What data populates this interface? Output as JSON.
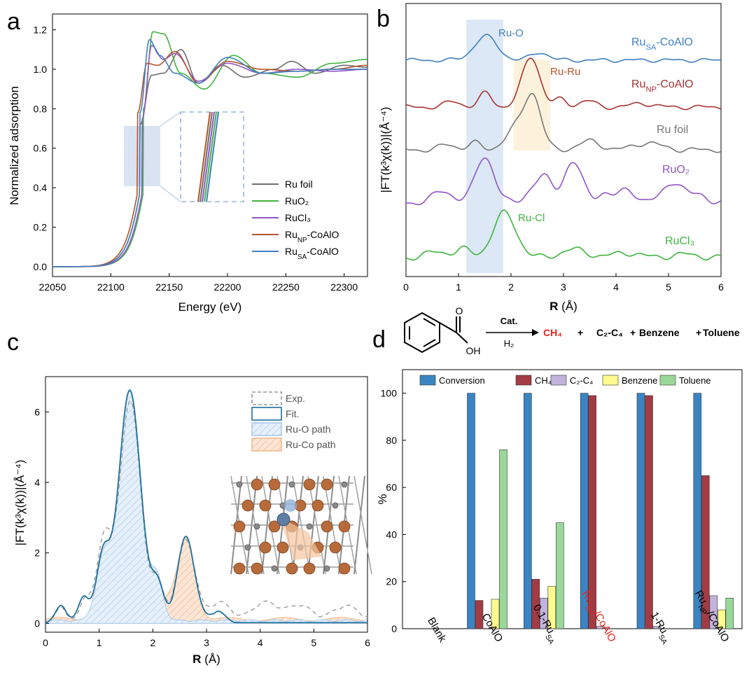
{
  "figure": {
    "panel_labels": [
      "a",
      "b",
      "c",
      "d"
    ]
  },
  "chart_data": [
    {
      "panel": "a",
      "type": "line",
      "xlabel": "Energy (eV)",
      "ylabel": "Normalized adsorption",
      "xlim": [
        22050,
        22320
      ],
      "ylim": [
        -0.05,
        1.28
      ],
      "xticks": [
        "22050",
        "22100",
        "22150",
        "22200",
        "22250",
        "22300"
      ],
      "yticks": [
        "0.0",
        "0.2",
        "0.4",
        "0.6",
        "0.8",
        "1.0",
        "1.2"
      ],
      "legend": {
        "position": "bottom-right",
        "entries": [
          {
            "label": "Ru foil",
            "color": "#6d6d6d"
          },
          {
            "label": "RuO₂",
            "color": "#3fb43f"
          },
          {
            "label": "RuCl₃",
            "color": "#8f55c8"
          },
          {
            "label": "Ru_NP-CoAlO",
            "main": "Ru",
            "sub": "NP",
            "rest": "-CoAlO",
            "color": "#b5542a"
          },
          {
            "label": "Ru_SA-CoAlO",
            "main": "Ru",
            "sub": "SA",
            "rest": "-CoAlO",
            "color": "#3f7fbf"
          }
        ]
      },
      "series": [
        {
          "name": "Ru foil",
          "color": "#6d6d6d",
          "edge": 22127,
          "width": 6.5,
          "x": [
            22125,
            22135,
            22145,
            22160,
            22175,
            22195,
            22215,
            22240,
            22255,
            22275,
            22300,
            22320
          ],
          "y": [
            0.72,
            0.97,
            0.98,
            1.1,
            0.93,
            1.02,
            0.96,
            1.0,
            1.04,
            0.98,
            1.02,
            1.01
          ]
        },
        {
          "name": "RuO2",
          "color": "#3fb43f",
          "edge": 22130,
          "width": 6.5,
          "x": [
            22128,
            22136,
            22145,
            22160,
            22180,
            22205,
            22230,
            22260,
            22290,
            22320
          ],
          "y": [
            0.8,
            1.19,
            1.18,
            0.98,
            0.9,
            1.07,
            0.98,
            0.96,
            1.03,
            1.05
          ]
        },
        {
          "name": "RuCl3",
          "color": "#8f55c8",
          "edge": 22129,
          "width": 6.5,
          "x": [
            22127,
            22135,
            22145,
            22155,
            22175,
            22200,
            22230,
            22260,
            22290,
            22320
          ],
          "y": [
            0.75,
            1.12,
            1.05,
            1.08,
            0.94,
            1.03,
            0.98,
            1.0,
            0.99,
            1.0
          ]
        },
        {
          "name": "RuNP-CoAlO",
          "color": "#b5542a",
          "edge": 22125,
          "width": 6.5,
          "x": [
            22123,
            22131,
            22140,
            22155,
            22175,
            22200,
            22230,
            22260,
            22290,
            22320
          ],
          "y": [
            0.78,
            1.03,
            1.02,
            1.09,
            0.93,
            1.04,
            1.0,
            0.99,
            1.0,
            1.02
          ]
        },
        {
          "name": "RuSA-CoAlO",
          "color": "#3f7fbf",
          "edge": 22127,
          "width": 6.5,
          "x": [
            22125,
            22133,
            22142,
            22155,
            22175,
            22200,
            22230,
            22260,
            22290,
            22320
          ],
          "y": [
            0.78,
            1.15,
            1.07,
            0.98,
            0.93,
            1.06,
            0.98,
            0.99,
            1.0,
            1.0
          ]
        }
      ]
    },
    {
      "panel": "b",
      "type": "line",
      "xlabel": "R (Å)",
      "xlabel_bold": "R",
      "xlabel_rest": " (Å)",
      "ylabel": "|FT(k³χ(k))|(Å⁻⁴)",
      "xlim": [
        0,
        6
      ],
      "xticks": [
        "0",
        "1",
        "2",
        "3",
        "4",
        "5",
        "6"
      ],
      "highlight_bands": [
        {
          "name": "Ru-O",
          "x0": 1.15,
          "x1": 1.85,
          "color": "#dce8f6"
        },
        {
          "name": "Ru-Ru",
          "x0": 2.05,
          "x1": 2.75,
          "color": "#fcf2dc"
        }
      ],
      "annotations": [
        {
          "text": "Ru-O",
          "color": "#3f7fbf"
        },
        {
          "text": "Ru-Ru",
          "color": "#b5542a"
        },
        {
          "text": "Ru-Cl",
          "color": "#3fb43f"
        }
      ],
      "series": [
        {
          "name": "RuSA-CoAlO",
          "label_main": "Ru",
          "label_sub": "SA",
          "label_rest": "-CoAlO",
          "color": "#3f7fbf",
          "offset": 4,
          "peaks": [
            [
              1.52,
              0.9,
              0.22
            ],
            [
              2.55,
              0.3,
              0.16
            ]
          ]
        },
        {
          "name": "RuNP-CoAlO",
          "label_main": "Ru",
          "label_sub": "NP",
          "label_rest": "-CoAlO",
          "color": "#a83232",
          "offset": 3,
          "peaks": [
            [
              0.9,
              0.18,
              0.15
            ],
            [
              1.52,
              0.45,
              0.12
            ],
            [
              2.38,
              1.6,
              0.17
            ],
            [
              2.95,
              0.25,
              0.12
            ],
            [
              3.45,
              0.2,
              0.15
            ],
            [
              4.5,
              0.12,
              0.2
            ]
          ]
        },
        {
          "name": "Ru foil",
          "label_main": "Ru foil",
          "label_sub": "",
          "label_rest": "",
          "color": "#777777",
          "offset": 2,
          "peaks": [
            [
              0.8,
              0.15,
              0.15
            ],
            [
              1.3,
              0.2,
              0.12
            ],
            [
              2.1,
              0.6,
              0.2
            ],
            [
              2.42,
              1.45,
              0.16
            ],
            [
              3.5,
              0.25,
              0.2
            ],
            [
              4.6,
              0.2,
              0.25
            ]
          ]
        },
        {
          "name": "RuO2",
          "label_main": "RuO₂",
          "label_sub": "",
          "label_rest": "",
          "color": "#8f55c8",
          "offset": 1,
          "peaks": [
            [
              0.7,
              0.3,
              0.2
            ],
            [
              1.5,
              1.2,
              0.18
            ],
            [
              2.4,
              0.3,
              0.15
            ],
            [
              2.65,
              0.6,
              0.14
            ],
            [
              3.18,
              1.05,
              0.18
            ],
            [
              3.75,
              0.25,
              0.12
            ],
            [
              4.2,
              0.35,
              0.18
            ],
            [
              5.1,
              0.55,
              0.2
            ],
            [
              5.6,
              0.2,
              0.15
            ]
          ]
        },
        {
          "name": "RuCl3",
          "label_main": "RuCl₃",
          "label_sub": "",
          "label_rest": "",
          "color": "#3fb43f",
          "offset": 0,
          "peaks": [
            [
              0.6,
              0.15,
              0.2
            ],
            [
              1.1,
              0.2,
              0.15
            ],
            [
              1.88,
              1.1,
              0.22
            ],
            [
              3.2,
              0.2,
              0.25
            ],
            [
              4.2,
              0.12,
              0.25
            ],
            [
              5.3,
              0.08,
              0.25
            ]
          ]
        }
      ]
    },
    {
      "panel": "c",
      "type": "line",
      "xlabel": "R (Å)",
      "xlabel_bold": "R",
      "xlabel_rest": " (Å)",
      "ylabel": "|FT(k³χ(k))|(Å⁻⁴)",
      "xlim": [
        0,
        6
      ],
      "ylim": [
        -0.25,
        7
      ],
      "xticks": [
        "0",
        "1",
        "2",
        "3",
        "4",
        "5",
        "6"
      ],
      "yticks": [
        "0",
        "2",
        "4",
        "6"
      ],
      "legend": {
        "position": "top-right",
        "entries": [
          {
            "label": "Exp.",
            "style": "dashed",
            "color": "#9a9a9a"
          },
          {
            "label": "Fit.",
            "style": "solid",
            "color": "#1f6f9a"
          },
          {
            "label": "Ru-O path",
            "style": "hatch-blue",
            "color": "#9ac3e8"
          },
          {
            "label": "Ru-Co path",
            "style": "hatch-orange",
            "color": "#f0b489"
          }
        ]
      },
      "fit_peaks": [
        [
          0.3,
          0.45,
          0.1
        ],
        [
          0.72,
          0.7,
          0.1
        ],
        [
          1.08,
          1.85,
          0.13
        ],
        [
          1.57,
          6.6,
          0.2
        ],
        [
          2.08,
          1.05,
          0.12
        ],
        [
          2.62,
          2.4,
          0.16
        ],
        [
          3.2,
          0.3,
          0.12
        ]
      ],
      "exp_peaks": [
        [
          0.3,
          0.4,
          0.1
        ],
        [
          0.75,
          0.65,
          0.1
        ],
        [
          1.1,
          2.35,
          0.14
        ],
        [
          1.58,
          6.3,
          0.19
        ],
        [
          2.08,
          1.1,
          0.12
        ],
        [
          2.62,
          2.3,
          0.17
        ],
        [
          3.25,
          0.55,
          0.2
        ],
        [
          4.1,
          0.55,
          0.25
        ],
        [
          4.75,
          0.45,
          0.22
        ],
        [
          5.6,
          0.45,
          0.25
        ]
      ],
      "ru_o_peaks": [
        [
          1.08,
          1.7,
          0.14
        ],
        [
          1.57,
          6.55,
          0.2
        ],
        [
          2.08,
          1.15,
          0.11
        ]
      ],
      "ru_co_peaks": [
        [
          2.62,
          2.3,
          0.16
        ],
        [
          2.25,
          0.45,
          0.12
        ],
        [
          1.9,
          0.25,
          0.1
        ]
      ],
      "inset": "Ru single atom on CoAlO lattice model"
    },
    {
      "panel": "d",
      "type": "bar",
      "reaction": {
        "reactant_labels": [
          "O",
          "OH"
        ],
        "catalyst": "Cat.",
        "reagent": "H₂",
        "products": [
          {
            "text": "CH₄",
            "color": "#e0241c"
          },
          {
            "text": "+",
            "color": "#000000"
          },
          {
            "text": "C₂-C₄",
            "color": "#000000"
          },
          {
            "text": "+",
            "color": "#000000"
          },
          {
            "text": "Benzene",
            "color": "#000000"
          },
          {
            "text": "+",
            "color": "#000000"
          },
          {
            "text": "Toluene",
            "color": "#000000"
          }
        ]
      },
      "ylabel": "%",
      "ylim": [
        0,
        110
      ],
      "yticks": [
        "0",
        "20",
        "40",
        "60",
        "80",
        "100"
      ],
      "categories": [
        "Blank",
        "CoAlO",
        "0.1-Ru_SA",
        "Ru_SA/CoAlO",
        "1-Ru_SA",
        "Ru_NP/CoAlO"
      ],
      "category_labels": [
        {
          "main": "Blank",
          "sub": "",
          "rest": "",
          "color": "#000000"
        },
        {
          "main": "CoAlO",
          "sub": "",
          "rest": "",
          "color": "#000000"
        },
        {
          "main": "0.1-Ru",
          "sub": "SA",
          "rest": "",
          "color": "#000000"
        },
        {
          "main": "Ru",
          "sub": "SA",
          "rest": "/CoAlO",
          "color": "#e0241c"
        },
        {
          "main": "1-Ru",
          "sub": "SA",
          "rest": "",
          "color": "#000000"
        },
        {
          "main": "Ru",
          "sub": "NP",
          "rest": "/CoAlO",
          "color": "#000000"
        }
      ],
      "series": [
        {
          "name": "Conversion",
          "label": "Conversion",
          "color": "#3a84c4",
          "values": [
            0,
            100,
            100,
            100,
            100,
            100
          ]
        },
        {
          "name": "CH4",
          "label": "CH₄",
          "color": "#a33b45",
          "values": [
            0,
            12,
            21,
            99,
            99,
            65
          ]
        },
        {
          "name": "C2-C4",
          "label": "C₂-C₄",
          "color": "#c1b3dc",
          "values": [
            0,
            0,
            13,
            1,
            1,
            14
          ]
        },
        {
          "name": "Benzene",
          "label": "Benzene",
          "color": "#fdfb8e",
          "values": [
            0,
            12.5,
            18,
            0,
            0,
            8
          ]
        },
        {
          "name": "Toluene",
          "label": "Toluene",
          "color": "#9ad89a",
          "values": [
            0,
            76,
            45,
            0,
            0,
            13
          ]
        }
      ]
    }
  ]
}
